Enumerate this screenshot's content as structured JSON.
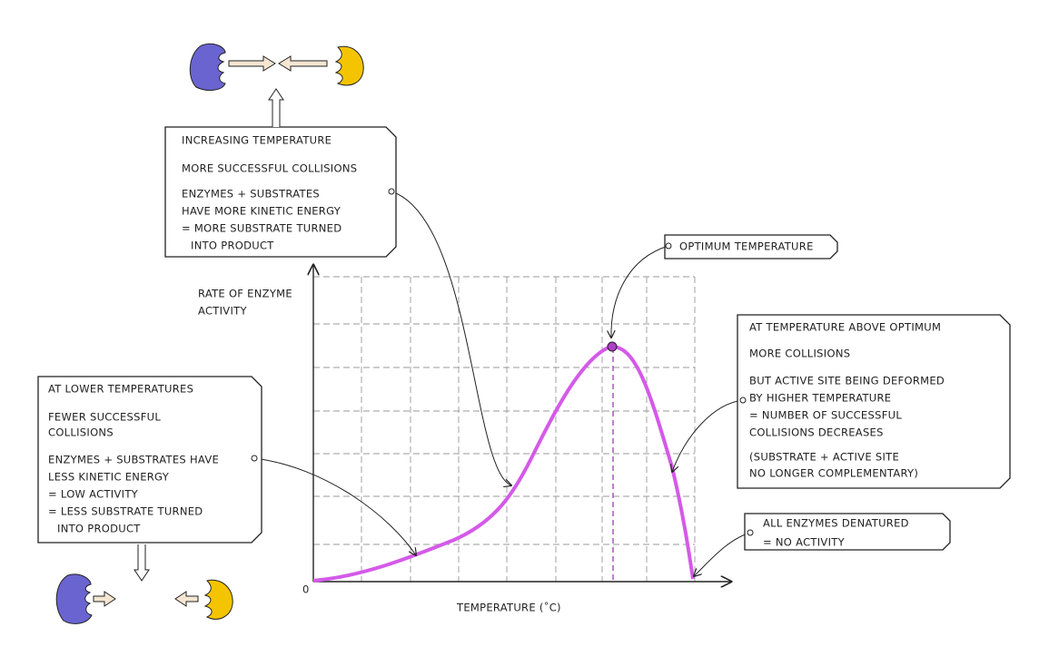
{
  "axes": {
    "y_label": [
      "RATE OF ENZYME",
      "ACTIVITY"
    ],
    "x_label": "TEMPERATURE (˚C)",
    "origin": "0"
  },
  "boxes": [
    {
      "lines": [
        "INCREASING TEMPERATURE",
        "MORE SUCCESSFUL COLLISIONS",
        "ENZYMES + SUBSTRATES",
        "HAVE MORE KINETIC ENERGY",
        "= MORE SUBSTRATE TURNED",
        "INTO PRODUCT"
      ]
    },
    {
      "lines": [
        "AT LOWER TEMPERATURES",
        "FEWER SUCCESSFUL",
        "COLLISIONS",
        "ENZYMES + SUBSTRATES HAVE",
        "LESS KINETIC ENERGY",
        "= LOW ACTIVITY",
        "= LESS SUBSTRATE TURNED",
        "INTO PRODUCT"
      ]
    },
    {
      "lines": [
        "AT TEMPERATURE ABOVE OPTIMUM",
        "MORE COLLISIONS",
        "BUT ACTIVE SITE BEING DEFORMED",
        "BY HIGHER TEMPERATURE",
        "= NUMBER OF SUCCESSFUL",
        "COLLISIONS DECREASES",
        "(SUBSTRATE + ACTIVE SITE",
        "NO LONGER COMPLEMENTARY)"
      ]
    },
    {
      "lines": [
        "OPTIMUM TEMPERATURE"
      ]
    },
    {
      "lines": [
        "ALL ENZYMES DENATURED",
        "= NO ACTIVITY"
      ]
    }
  ]
}
